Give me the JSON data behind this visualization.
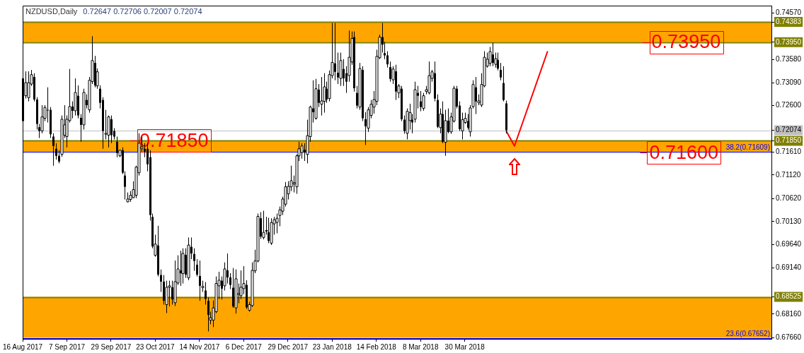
{
  "chart_data": {
    "type": "candlestick",
    "title": "NZDUSD,Daily",
    "subtitle": "0.72647 0.72706 0.72007 0.72074",
    "legend": false,
    "grid": false,
    "color": "#000000",
    "categories": [
      "16 Aug 2017",
      null,
      null,
      null,
      null,
      null,
      null,
      null,
      null,
      null,
      null,
      null,
      null,
      null,
      null,
      null,
      "7 Sep 2017",
      null,
      null,
      null,
      null,
      null,
      null,
      null,
      null,
      null,
      null,
      null,
      null,
      null,
      null,
      null,
      "29 Sep 2017",
      null,
      null,
      null,
      null,
      null,
      null,
      null,
      null,
      null,
      null,
      null,
      null,
      null,
      null,
      null,
      "23 Oct 2017",
      null,
      null,
      null,
      null,
      null,
      null,
      null,
      null,
      null,
      null,
      null,
      null,
      null,
      null,
      null,
      "14 Nov 2017",
      null,
      null,
      null,
      null,
      null,
      null,
      null,
      null,
      null,
      null,
      null,
      null,
      null,
      null,
      null,
      "6 Dec 2017",
      null,
      null,
      null,
      null,
      null,
      null,
      null,
      null,
      null,
      null,
      null,
      null,
      null,
      null,
      null,
      "29 Dec 2017",
      null,
      null,
      null,
      null,
      null,
      null,
      null,
      null,
      null,
      null,
      null,
      null,
      null,
      null,
      null,
      "23 Jan 2018",
      null,
      null,
      null,
      null,
      null,
      null,
      null,
      null,
      null,
      null,
      null,
      null,
      null,
      null,
      null,
      "14 Feb 2018",
      null,
      null,
      null,
      null,
      null,
      null,
      null,
      null,
      null,
      null,
      null,
      null,
      null,
      null,
      null,
      "8 Mar 2018",
      null,
      null,
      null,
      null,
      null,
      null,
      null,
      null,
      null,
      null,
      null,
      null,
      null,
      null,
      null,
      "30 Mar 2018",
      null,
      null,
      null,
      null,
      null,
      null,
      null,
      null,
      null,
      null,
      null,
      null,
      null,
      null,
      null,
      null,
      null,
      null,
      null,
      null,
      null,
      null,
      null,
      null,
      null,
      null,
      null,
      null,
      null,
      null,
      null,
      null,
      null,
      null,
      null,
      null,
      null,
      null,
      null,
      null,
      null,
      null,
      null,
      null,
      null,
      null,
      null,
      null,
      null,
      null,
      null,
      null,
      null,
      null,
      null,
      null,
      null,
      null,
      null,
      null,
      null,
      null,
      null,
      null,
      null,
      null,
      null,
      null,
      null,
      null,
      null,
      null,
      null,
      null,
      null,
      null,
      null,
      null,
      null,
      null,
      null,
      null,
      null,
      null,
      null,
      null,
      null,
      null,
      null,
      null,
      null,
      null,
      null,
      null,
      null,
      null,
      null,
      null,
      null,
      null,
      null,
      null,
      null,
      null,
      null,
      null,
      null,
      null,
      null,
      null,
      null
    ],
    "ohlc": [
      [
        0.7318,
        0.7329,
        0.7218,
        0.7227
      ],
      [
        0.7281,
        0.7333,
        0.7275,
        0.7309
      ],
      [
        0.7277,
        0.7333,
        0.7269,
        0.7309
      ],
      [
        0.7306,
        0.7336,
        0.7302,
        0.7326
      ],
      [
        0.7321,
        0.7329,
        0.7269,
        0.7273
      ],
      [
        0.7273,
        0.7278,
        0.7209,
        0.7221
      ],
      [
        0.7214,
        0.7221,
        0.7191,
        0.7206
      ],
      [
        0.7206,
        0.7261,
        0.7201,
        0.7236
      ],
      [
        0.7233,
        0.7261,
        0.7227,
        0.7256
      ],
      [
        0.7251,
        0.7299,
        0.7224,
        0.725
      ],
      [
        0.7251,
        0.7257,
        0.7191,
        0.7199
      ],
      [
        0.7194,
        0.7201,
        0.7132,
        0.7174
      ],
      [
        0.7168,
        0.718,
        0.7145,
        0.7153
      ],
      [
        0.7153,
        0.7165,
        0.7137,
        0.7141
      ],
      [
        0.7156,
        0.7239,
        0.7151,
        0.7231
      ],
      [
        0.7197,
        0.7261,
        0.7191,
        0.7219
      ],
      [
        0.7194,
        0.7239,
        0.7171,
        0.7231
      ],
      [
        0.7228,
        0.7338,
        0.7224,
        0.7258
      ],
      [
        0.7258,
        0.7269,
        0.7233,
        0.7249
      ],
      [
        0.7249,
        0.7318,
        0.7239,
        0.7288
      ],
      [
        0.7281,
        0.7303,
        0.7233,
        0.7239
      ],
      [
        0.7234,
        0.7242,
        0.7183,
        0.7219
      ],
      [
        0.7219,
        0.7296,
        0.7209,
        0.7288
      ],
      [
        0.7272,
        0.7284,
        0.7254,
        0.7261
      ],
      [
        0.7251,
        0.7321,
        0.7245,
        0.7314
      ],
      [
        0.7311,
        0.7408,
        0.7306,
        0.7356
      ],
      [
        0.7351,
        0.7366,
        0.7299,
        0.7303
      ],
      [
        0.7302,
        0.7339,
        0.7296,
        0.7332
      ],
      [
        0.7296,
        0.7303,
        0.7254,
        0.7266
      ],
      [
        0.7272,
        0.7278,
        0.7168,
        0.7206
      ],
      [
        0.7199,
        0.7251,
        0.7188,
        0.7201
      ],
      [
        0.7197,
        0.7239,
        0.7171,
        0.7236
      ],
      [
        0.7231,
        0.7239,
        0.718,
        0.7197
      ],
      [
        0.7206,
        0.7212,
        0.7188,
        0.7194
      ],
      [
        0.7183,
        0.7194,
        0.715,
        0.7159
      ],
      [
        0.7153,
        0.7165,
        0.715,
        0.7165
      ],
      [
        0.7165,
        0.7171,
        0.7114,
        0.7117
      ],
      [
        0.7111,
        0.712,
        0.706,
        0.7087
      ],
      [
        0.7055,
        0.7075,
        0.7054,
        0.7061
      ],
      [
        0.706,
        0.7078,
        0.7055,
        0.7069
      ],
      [
        0.7064,
        0.7099,
        0.7063,
        0.7081
      ],
      [
        0.7069,
        0.7132,
        0.7063,
        0.7129
      ],
      [
        0.7117,
        0.7201,
        0.7111,
        0.718
      ],
      [
        0.7168,
        0.7194,
        0.7162,
        0.7172
      ],
      [
        0.7168,
        0.718,
        0.715,
        0.7162
      ],
      [
        0.7168,
        0.718,
        0.712,
        0.7135
      ],
      [
        0.715,
        0.7165,
        0.7015,
        0.7027
      ],
      [
        0.7023,
        0.703,
        0.6956,
        0.696
      ],
      [
        0.6941,
        0.6985,
        0.6938,
        0.6965
      ],
      [
        0.6962,
        0.7004,
        0.6896,
        0.69
      ],
      [
        0.6899,
        0.6911,
        0.6863,
        0.6885
      ],
      [
        0.6885,
        0.6899,
        0.6836,
        0.6844
      ],
      [
        0.6836,
        0.6887,
        0.6818,
        0.6873
      ],
      [
        0.6873,
        0.6887,
        0.6832,
        0.6876
      ],
      [
        0.6873,
        0.6887,
        0.6836,
        0.6847
      ],
      [
        0.684,
        0.693,
        0.6833,
        0.6885
      ],
      [
        0.6882,
        0.6941,
        0.6878,
        0.6912
      ],
      [
        0.6909,
        0.6951,
        0.6876,
        0.6903
      ],
      [
        0.6902,
        0.6956,
        0.6881,
        0.6945
      ],
      [
        0.6942,
        0.6956,
        0.6893,
        0.69
      ],
      [
        0.6893,
        0.6979,
        0.6888,
        0.6963
      ],
      [
        0.6959,
        0.6979,
        0.6933,
        0.6945
      ],
      [
        0.6944,
        0.6956,
        0.6908,
        0.6929
      ],
      [
        0.6921,
        0.6933,
        0.6896,
        0.69
      ],
      [
        0.6897,
        0.693,
        0.6844,
        0.6876
      ],
      [
        0.6872,
        0.6887,
        0.6863,
        0.6875
      ],
      [
        0.6866,
        0.6884,
        0.6836,
        0.6848
      ],
      [
        0.6844,
        0.6851,
        0.6779,
        0.6814
      ],
      [
        0.6803,
        0.6821,
        0.6794,
        0.6808
      ],
      [
        0.6803,
        0.6845,
        0.6788,
        0.6829
      ],
      [
        0.6821,
        0.6896,
        0.6818,
        0.6881
      ],
      [
        0.6876,
        0.6906,
        0.6848,
        0.6888
      ],
      [
        0.6887,
        0.6896,
        0.6847,
        0.687
      ],
      [
        0.6876,
        0.6926,
        0.6866,
        0.6912
      ],
      [
        0.6909,
        0.6945,
        0.6881,
        0.6894
      ],
      [
        0.6894,
        0.6903,
        0.6869,
        0.6878
      ],
      [
        0.6872,
        0.6914,
        0.6829,
        0.6832
      ],
      [
        0.6829,
        0.6911,
        0.6817,
        0.6891
      ],
      [
        0.6857,
        0.6881,
        0.6839,
        0.686
      ],
      [
        0.6855,
        0.6909,
        0.6848,
        0.6873
      ],
      [
        0.687,
        0.6918,
        0.6858,
        0.6881
      ],
      [
        0.6878,
        0.6888,
        0.6827,
        0.683
      ],
      [
        0.6824,
        0.6842,
        0.6821,
        0.6836
      ],
      [
        0.6834,
        0.6926,
        0.6831,
        0.6909
      ],
      [
        0.6908,
        0.6953,
        0.6903,
        0.6929
      ],
      [
        0.6929,
        0.703,
        0.6926,
        0.7024
      ],
      [
        0.702,
        0.7033,
        0.6976,
        0.6981
      ],
      [
        0.6979,
        0.7036,
        0.6975,
        0.699
      ],
      [
        0.6993,
        0.7023,
        0.6985,
        0.6994
      ],
      [
        0.699,
        0.7021,
        0.6967,
        0.6972
      ],
      [
        0.6967,
        0.702,
        0.6963,
        0.7011
      ],
      [
        0.7008,
        0.7023,
        0.6985,
        0.7017
      ],
      [
        0.7011,
        0.703,
        0.6988,
        0.702
      ],
      [
        0.7026,
        0.7045,
        0.7003,
        0.7038
      ],
      [
        0.7035,
        0.7066,
        0.7027,
        0.7061
      ],
      [
        0.705,
        0.7097,
        0.7045,
        0.7087
      ],
      [
        0.7072,
        0.7099,
        0.706,
        0.7088
      ],
      [
        0.7087,
        0.7132,
        0.7078,
        0.71
      ],
      [
        0.7093,
        0.7111,
        0.7075,
        0.7096
      ],
      [
        0.7087,
        0.7156,
        0.7072,
        0.7153
      ],
      [
        0.7153,
        0.7183,
        0.7142,
        0.7168
      ],
      [
        0.716,
        0.718,
        0.7147,
        0.7174
      ],
      [
        0.7166,
        0.718,
        0.7142,
        0.716
      ],
      [
        0.7156,
        0.723,
        0.7137,
        0.7196
      ],
      [
        0.7194,
        0.726,
        0.7183,
        0.7257
      ],
      [
        0.7254,
        0.7314,
        0.7224,
        0.7246
      ],
      [
        0.7233,
        0.7317,
        0.723,
        0.7296
      ],
      [
        0.7294,
        0.7306,
        0.7257,
        0.7266
      ],
      [
        0.7263,
        0.7321,
        0.7239,
        0.727
      ],
      [
        0.7269,
        0.7329,
        0.7245,
        0.73
      ],
      [
        0.7296,
        0.7311,
        0.7266,
        0.7273
      ],
      [
        0.7275,
        0.7335,
        0.7269,
        0.7326
      ],
      [
        0.7324,
        0.7436,
        0.7318,
        0.7352
      ],
      [
        0.735,
        0.7436,
        0.7314,
        0.7332
      ],
      [
        0.733,
        0.7373,
        0.7306,
        0.732
      ],
      [
        0.7318,
        0.7373,
        0.7302,
        0.7356
      ],
      [
        0.7338,
        0.7359,
        0.7302,
        0.7318
      ],
      [
        0.7329,
        0.7344,
        0.7287,
        0.7311
      ],
      [
        0.7324,
        0.742,
        0.7311,
        0.7363
      ],
      [
        0.7353,
        0.7418,
        0.7347,
        0.7403
      ],
      [
        0.7406,
        0.7418,
        0.729,
        0.7297
      ],
      [
        0.7287,
        0.7302,
        0.7254,
        0.726
      ],
      [
        0.7257,
        0.7351,
        0.7251,
        0.7339
      ],
      [
        0.7336,
        0.7344,
        0.7227,
        0.7233
      ],
      [
        0.7231,
        0.7246,
        0.7176,
        0.7216
      ],
      [
        0.7212,
        0.7257,
        0.7204,
        0.7251
      ],
      [
        0.7239,
        0.7272,
        0.7233,
        0.7263
      ],
      [
        0.7257,
        0.7291,
        0.7243,
        0.7273
      ],
      [
        0.7269,
        0.7379,
        0.7261,
        0.7365
      ],
      [
        0.7362,
        0.7411,
        0.7359,
        0.7406
      ],
      [
        0.7406,
        0.7436,
        0.7373,
        0.739
      ],
      [
        0.7372,
        0.7396,
        0.7359,
        0.7367
      ],
      [
        0.7367,
        0.7376,
        0.7341,
        0.7348
      ],
      [
        0.7342,
        0.7354,
        0.7311,
        0.7317
      ],
      [
        0.7315,
        0.7344,
        0.7306,
        0.7338
      ],
      [
        0.7333,
        0.7347,
        0.7272,
        0.729
      ],
      [
        0.7287,
        0.7306,
        0.7276,
        0.7302
      ],
      [
        0.7296,
        0.7302,
        0.7227,
        0.7231
      ],
      [
        0.723,
        0.7239,
        0.72,
        0.7206
      ],
      [
        0.7201,
        0.7254,
        0.7188,
        0.7248
      ],
      [
        0.7228,
        0.7264,
        0.7209,
        0.7245
      ],
      [
        0.723,
        0.7242,
        0.7201,
        0.7224
      ],
      [
        0.7231,
        0.7311,
        0.7224,
        0.7294
      ],
      [
        0.7287,
        0.7302,
        0.7254,
        0.7281
      ],
      [
        0.7269,
        0.7291,
        0.7248,
        0.7257
      ],
      [
        0.7254,
        0.7287,
        0.7249,
        0.7281
      ],
      [
        0.729,
        0.7302,
        0.7284,
        0.7294
      ],
      [
        0.7287,
        0.7354,
        0.7284,
        0.7324
      ],
      [
        0.7318,
        0.7336,
        0.7311,
        0.7332
      ],
      [
        0.7329,
        0.7354,
        0.7269,
        0.7275
      ],
      [
        0.7272,
        0.7284,
        0.7212,
        0.7215
      ],
      [
        0.7213,
        0.7254,
        0.7201,
        0.7242
      ],
      [
        0.7242,
        0.7269,
        0.718,
        0.7183
      ],
      [
        0.7182,
        0.7251,
        0.7153,
        0.7228
      ],
      [
        0.7228,
        0.7254,
        0.7201,
        0.7204
      ],
      [
        0.7204,
        0.7245,
        0.72,
        0.7236
      ],
      [
        0.7227,
        0.7302,
        0.7224,
        0.7297
      ],
      [
        0.7296,
        0.7302,
        0.7254,
        0.7258
      ],
      [
        0.726,
        0.7269,
        0.7206,
        0.721
      ],
      [
        0.7206,
        0.7245,
        0.7188,
        0.723
      ],
      [
        0.7224,
        0.7245,
        0.7221,
        0.7233
      ],
      [
        0.7227,
        0.7242,
        0.7209,
        0.7213
      ],
      [
        0.7204,
        0.7261,
        0.7194,
        0.7255
      ],
      [
        0.7258,
        0.7314,
        0.7254,
        0.7305
      ],
      [
        0.7299,
        0.7321,
        0.7242,
        0.7269
      ],
      [
        0.7266,
        0.7284,
        0.7261,
        0.727
      ],
      [
        0.7261,
        0.7329,
        0.7257,
        0.7305
      ],
      [
        0.7302,
        0.7376,
        0.7299,
        0.7363
      ],
      [
        0.7344,
        0.7373,
        0.7341,
        0.7359
      ],
      [
        0.735,
        0.7385,
        0.7344,
        0.7375
      ],
      [
        0.7369,
        0.7394,
        0.7344,
        0.7351
      ],
      [
        0.7348,
        0.7373,
        0.7341,
        0.736
      ],
      [
        0.7357,
        0.7373,
        0.7335,
        0.7339
      ],
      [
        0.7336,
        0.7351,
        0.7314,
        0.732
      ],
      [
        0.7308,
        0.7344,
        0.7269,
        0.7272
      ],
      [
        0.72647,
        0.72706,
        0.72007,
        0.72074
      ],
      null,
      null,
      null,
      null,
      null,
      null,
      null,
      null,
      null,
      null,
      null,
      null,
      null,
      null,
      null,
      null,
      null,
      null,
      null,
      null,
      null,
      null,
      null,
      null,
      null,
      null,
      null,
      null,
      null,
      null,
      null,
      null,
      null,
      null,
      null,
      null,
      null,
      null,
      null,
      null,
      null,
      null,
      null,
      null,
      null,
      null,
      null,
      null,
      null,
      null,
      null,
      null,
      null,
      null,
      null,
      null,
      null,
      null,
      null,
      null,
      null,
      null,
      null,
      null,
      null,
      null,
      null,
      null,
      null,
      null,
      null,
      null,
      null,
      null,
      null,
      null,
      null,
      null,
      null,
      null,
      null,
      null,
      null,
      null,
      null,
      null,
      null,
      null,
      null,
      null,
      null,
      null,
      null,
      null,
      null,
      null
    ],
    "series": [
      {
        "type": "line",
        "color": "#ff0000",
        "marker": "none",
        "values": [
          null,
          null,
          null,
          null,
          null,
          null,
          null,
          null,
          null,
          null,
          null,
          null,
          null,
          null,
          null,
          null,
          null,
          null,
          null,
          null,
          null,
          null,
          null,
          null,
          null,
          null,
          null,
          null,
          null,
          null,
          null,
          null,
          null,
          null,
          null,
          null,
          null,
          null,
          null,
          null,
          null,
          null,
          null,
          null,
          null,
          null,
          null,
          null,
          null,
          null,
          null,
          null,
          null,
          null,
          null,
          null,
          null,
          null,
          null,
          null,
          null,
          null,
          null,
          null,
          null,
          null,
          null,
          null,
          null,
          null,
          null,
          null,
          null,
          null,
          null,
          null,
          null,
          null,
          null,
          null,
          null,
          null,
          null,
          null,
          null,
          null,
          null,
          null,
          null,
          null,
          null,
          null,
          null,
          null,
          null,
          null,
          null,
          null,
          null,
          null,
          null,
          null,
          null,
          null,
          null,
          null,
          null,
          null,
          null,
          null,
          null,
          null,
          null,
          null,
          null,
          null,
          null,
          null,
          null,
          null,
          null,
          null,
          null,
          null,
          null,
          null,
          null,
          null,
          null,
          null,
          null,
          null,
          null,
          null,
          null,
          null,
          null,
          null,
          null,
          null,
          null,
          null,
          null,
          null,
          null,
          null,
          null,
          null,
          null,
          null,
          null,
          null,
          null,
          null,
          null,
          null,
          null,
          null,
          null,
          null,
          null,
          null,
          null,
          null,
          null,
          null,
          null,
          null,
          null,
          null,
          null,
          null,
          null,
          null,
          null,
          0.7206,
          null,
          null,
          0.7174,
          null,
          null,
          null,
          null,
          null,
          null,
          null,
          null,
          null,
          null,
          null,
          0.7376,
          null,
          null,
          null,
          null,
          null,
          null,
          null,
          null,
          null,
          null,
          null,
          null,
          null,
          null,
          null,
          null,
          null,
          null,
          null,
          null,
          null,
          null,
          null,
          null,
          null,
          null,
          null,
          null,
          null,
          null,
          null,
          null,
          null,
          null,
          null,
          null,
          null,
          null,
          null,
          null,
          null,
          null,
          null,
          null,
          null,
          null,
          null,
          null,
          null,
          null,
          null,
          null,
          null,
          null,
          null,
          null,
          null,
          null,
          null,
          null,
          null,
          null,
          null,
          null,
          null,
          null,
          null,
          null,
          null,
          null,
          null,
          null,
          null,
          null,
          null,
          null,
          null,
          null,
          null,
          null,
          null
        ]
      }
    ],
    "colors": [
      "#000000",
      "#ffffff",
      "#ffffff",
      "#ffffff",
      "#000000",
      "#000000",
      "#000000",
      "#ffffff",
      "#ffffff",
      "#000000",
      "#000000",
      "#000000",
      "#000000",
      "#000000",
      "#ffffff",
      "#ffffff",
      "#ffffff",
      "#ffffff",
      "#000000",
      "#ffffff",
      "#000000",
      "#000000",
      "#ffffff",
      "#000000",
      "#ffffff",
      "#ffffff",
      "#000000",
      "#ffffff",
      "#000000",
      "#000000",
      "#ffffff",
      "#ffffff",
      "#000000",
      "#000000",
      "#000000",
      "#ffffff",
      "#000000",
      "#000000",
      "#ffffff",
      "#ffffff",
      "#ffffff",
      "#ffffff",
      "#ffffff",
      "#ffffff",
      "#000000",
      "#000000",
      "#000000",
      "#000000",
      "#ffffff",
      "#000000",
      "#000000",
      "#000000",
      "#ffffff",
      "#ffffff",
      "#000000",
      "#ffffff",
      "#ffffff",
      "#000000",
      "#ffffff",
      "#000000",
      "#ffffff",
      "#000000",
      "#000000",
      "#000000",
      "#000000",
      "#ffffff",
      "#000000",
      "#000000",
      "#ffffff",
      "#ffffff",
      "#ffffff",
      "#ffffff",
      "#000000",
      "#ffffff",
      "#000000",
      "#000000",
      "#000000",
      "#ffffff",
      "#ffffff",
      "#ffffff",
      "#ffffff",
      "#000000",
      "#ffffff",
      "#ffffff",
      "#ffffff",
      "#ffffff",
      "#000000",
      "#ffffff",
      "#ffffff",
      "#000000",
      "#ffffff",
      "#ffffff",
      "#ffffff",
      "#ffffff",
      "#ffffff",
      "#ffffff",
      "#ffffff",
      "#ffffff",
      "#ffffff",
      "#ffffff",
      "#ffffff",
      "#ffffff",
      "#000000",
      "#ffffff",
      "#ffffff",
      "#000000",
      "#ffffff",
      "#000000",
      "#ffffff",
      "#ffffff",
      "#000000",
      "#ffffff",
      "#ffffff",
      "#000000",
      "#000000",
      "#ffffff",
      "#000000",
      "#000000",
      "#ffffff",
      "#ffffff",
      "#000000",
      "#000000",
      "#ffffff",
      "#000000",
      "#000000",
      "#ffffff",
      "#ffffff",
      "#ffffff",
      "#ffffff",
      "#ffffff",
      "#000000",
      "#000000",
      "#000000",
      "#000000",
      "#ffffff",
      "#000000",
      "#ffffff",
      "#000000",
      "#000000",
      "#ffffff",
      "#ffffff",
      "#000000",
      "#ffffff",
      "#000000",
      "#000000",
      "#ffffff",
      "#ffffff",
      "#ffffff",
      "#ffffff",
      "#000000",
      "#000000",
      "#ffffff",
      "#000000",
      "#ffffff",
      "#000000",
      "#ffffff",
      "#ffffff",
      "#000000",
      "#000000",
      "#ffffff",
      "#ffffff",
      "#000000",
      "#ffffff",
      "#ffffff",
      "#000000",
      "#ffffff",
      "#ffffff",
      "#ffffff",
      "#ffffff",
      "#ffffff",
      "#000000",
      "#ffffff",
      "#000000",
      "#000000",
      "#000000",
      "#000000",
      null,
      null,
      null,
      null,
      null,
      null,
      null,
      null,
      null,
      null,
      null,
      null,
      null,
      null,
      null,
      null,
      null,
      null,
      null,
      null,
      null,
      null,
      null,
      null,
      null,
      null,
      null,
      null,
      null,
      null,
      null,
      null,
      null,
      null,
      null,
      null,
      null,
      null,
      null,
      null,
      null,
      null,
      null,
      null,
      null,
      null,
      null,
      null,
      null,
      null,
      null,
      null,
      null,
      null,
      null,
      null,
      null,
      null,
      null,
      null,
      null,
      null,
      null,
      null,
      null,
      null,
      null,
      null,
      null,
      null,
      null,
      null,
      null,
      null,
      null,
      null,
      null,
      null,
      null,
      null,
      null,
      null,
      null,
      null,
      null,
      null,
      null,
      null,
      null,
      null,
      null,
      null,
      null,
      null,
      null,
      null
    ],
    "ylim": [
      0.6763,
      0.7473
    ],
    "yticks": [
      {
        "value": 0.7457,
        "label": "0.74570"
      },
      {
        "value": 0.74383,
        "label": "0.74383"
      },
      {
        "value": 0.7395,
        "label": "0.73950"
      },
      {
        "value": 0.7358,
        "label": "0.73580"
      },
      {
        "value": 0.7309,
        "label": "0.73090"
      },
      {
        "value": 0.726,
        "label": "0.72600"
      },
      {
        "value": 0.72074,
        "label": "0.72074"
      },
      {
        "value": 0.7185,
        "label": "0.71850"
      },
      {
        "value": 0.7161,
        "label": "0.71610"
      },
      {
        "value": 0.7112,
        "label": "0.71120"
      },
      {
        "value": 0.7062,
        "label": "0.70620"
      },
      {
        "value": 0.7013,
        "label": "0.70130"
      },
      {
        "value": 0.6964,
        "label": "0.69640"
      },
      {
        "value": 0.6914,
        "label": "0.69140"
      },
      {
        "value": 0.68525,
        "label": "0.68525"
      },
      {
        "value": 0.6816,
        "label": "0.68160"
      },
      {
        "value": 0.6766,
        "label": "0.67660"
      }
    ],
    "bands": [
      {
        "axis": "y",
        "from": 0.7395,
        "to": 0.74383,
        "color": "#ffa500"
      },
      {
        "axis": "y",
        "from": 0.7161,
        "to": 0.7185,
        "color": "#ffa500"
      },
      {
        "axis": "y",
        "from": 0.67652,
        "to": 0.68525,
        "color": "#ffa500"
      }
    ],
    "ref_lines": [
      {
        "axis": "y",
        "value": 0.74383,
        "color": "#808000"
      },
      {
        "axis": "y",
        "value": 0.7395,
        "color": "#808000"
      },
      {
        "axis": "y",
        "value": 0.7185,
        "color": "#808000"
      },
      {
        "axis": "y",
        "value": 0.68525,
        "color": "#808000"
      },
      {
        "axis": "y",
        "value": 0.72074,
        "color": "#c0c0c0"
      },
      {
        "axis": "y",
        "value": 0.71609,
        "color": "#0000ff",
        "label": "38.2(0.71609)"
      },
      {
        "axis": "y",
        "value": 0.67652,
        "color": "#0000ff",
        "label": "23.6(0.67652)"
      }
    ],
    "annotations": [
      {
        "text": "0.73950",
        "y": 0.7395
      },
      {
        "text": "0.71850",
        "y": 0.7185
      },
      {
        "text": "0.71600",
        "y": 0.716
      }
    ]
  }
}
